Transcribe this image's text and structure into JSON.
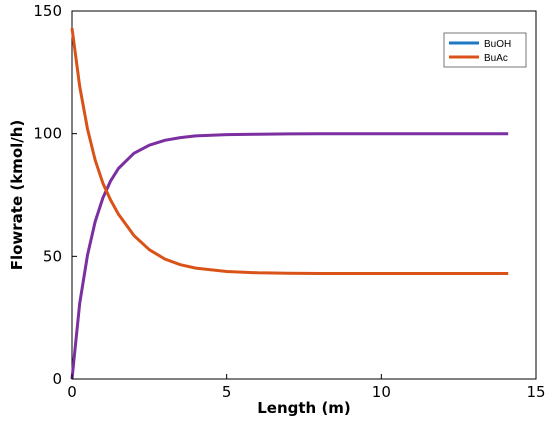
{
  "chart_data": {
    "type": "line",
    "xlabel": "Length (m)",
    "ylabel": "Flowrate (kmol/h)",
    "xlim": [
      0,
      15
    ],
    "ylim": [
      0,
      150
    ],
    "xticks": [
      "0",
      "5",
      "10",
      "15"
    ],
    "yticks": [
      "0",
      "50",
      "100",
      "150"
    ],
    "grid": false,
    "legend_position": "top-right",
    "legend": [
      "BuOH",
      "BuAc"
    ],
    "series": [
      {
        "name": "BuOH",
        "legend_color": "#1f77c4",
        "line_color": "#7b2fa0",
        "x": [
          0,
          0.25,
          0.5,
          0.75,
          1,
          1.25,
          1.5,
          2,
          2.5,
          3,
          3.5,
          4,
          5,
          6,
          7,
          8,
          10,
          12,
          14.1
        ],
        "y": [
          0,
          30.8,
          50.5,
          64.2,
          73.8,
          80.8,
          85.8,
          92.0,
          95.3,
          97.3,
          98.4,
          99.1,
          99.6,
          99.8,
          99.9,
          100,
          100,
          100,
          100
        ]
      },
      {
        "name": "BuAc",
        "legend_color": "#d95319",
        "line_color": "#d95319",
        "x": [
          0,
          0.25,
          0.5,
          0.75,
          1,
          1.25,
          1.5,
          2,
          2.5,
          3,
          3.5,
          4,
          5,
          6,
          7,
          8,
          10,
          12,
          14.1
        ],
        "y": [
          143,
          119.3,
          101.9,
          89.2,
          79.8,
          72.9,
          67.2,
          58.5,
          52.7,
          48.9,
          46.6,
          45.2,
          43.8,
          43.3,
          43.1,
          43,
          43,
          43,
          43
        ]
      }
    ]
  }
}
